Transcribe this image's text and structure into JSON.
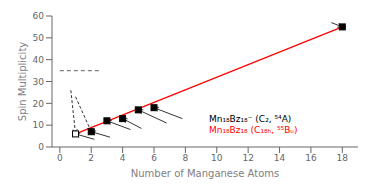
{
  "chart_data": {
    "type": "scatter",
    "xlabel": "Number of Manganese Atoms",
    "ylabel": "Spin Multiplicity",
    "xlim": [
      -0.5,
      19
    ],
    "ylim": [
      0,
      60
    ],
    "xticks": [
      0,
      2,
      4,
      6,
      8,
      10,
      12,
      14,
      16,
      18
    ],
    "yticks": [
      0,
      10,
      20,
      30,
      40,
      50,
      60
    ],
    "series": [
      {
        "type": "line",
        "color": "red",
        "line_style": "solid",
        "x": [
          1,
          18
        ],
        "values": [
          6,
          55
        ]
      },
      {
        "type": "line",
        "color": "gray",
        "line_style": "dashed",
        "x": [
          0,
          2.5
        ],
        "values": [
          35,
          35
        ]
      },
      {
        "type": "scatter",
        "color": "black",
        "marker": "square",
        "x": [
          2,
          3,
          4,
          5,
          6,
          18
        ],
        "values": [
          7,
          12,
          13,
          17,
          18,
          55
        ]
      },
      {
        "type": "scatter",
        "color": "black",
        "marker": "open_square",
        "x": [
          1
        ],
        "values": [
          6
        ]
      }
    ],
    "arrows": [
      {
        "from": [
          3.2,
          4.5
        ],
        "to": [
          2,
          7
        ],
        "line_style": "solid"
      },
      {
        "from": [
          4.5,
          8
        ],
        "to": [
          3,
          12
        ],
        "line_style": "solid"
      },
      {
        "from": [
          5.2,
          8.5
        ],
        "to": [
          4,
          13
        ],
        "line_style": "solid"
      },
      {
        "from": [
          6.8,
          11
        ],
        "to": [
          5,
          17
        ],
        "line_style": "solid"
      },
      {
        "from": [
          7.8,
          13
        ],
        "to": [
          6,
          18
        ],
        "line_style": "solid"
      },
      {
        "from": [
          2.2,
          3.5
        ],
        "to": [
          1,
          6
        ],
        "line_style": "solid"
      },
      {
        "from": [
          0.7,
          26
        ],
        "to": [
          1,
          6
        ],
        "line_style": "dashed"
      },
      {
        "from": [
          1.0,
          23
        ],
        "to": [
          2,
          7
        ],
        "line_style": "dashed"
      },
      {
        "from": [
          17.3,
          57
        ],
        "to": [
          18,
          55
        ],
        "line_style": "solid"
      }
    ],
    "annotations": [
      {
        "text": "Mn₁₈Bz₁₈⁻ (C₂, ⁵⁴A)",
        "color": "black",
        "x": 9.5,
        "y": 13
      },
      {
        "text": "Mn₁₈Bz₁₈ (C₁₈ₕ, ⁵⁵Bᵤ)",
        "color": "red",
        "x": 9.5,
        "y": 8
      }
    ]
  }
}
